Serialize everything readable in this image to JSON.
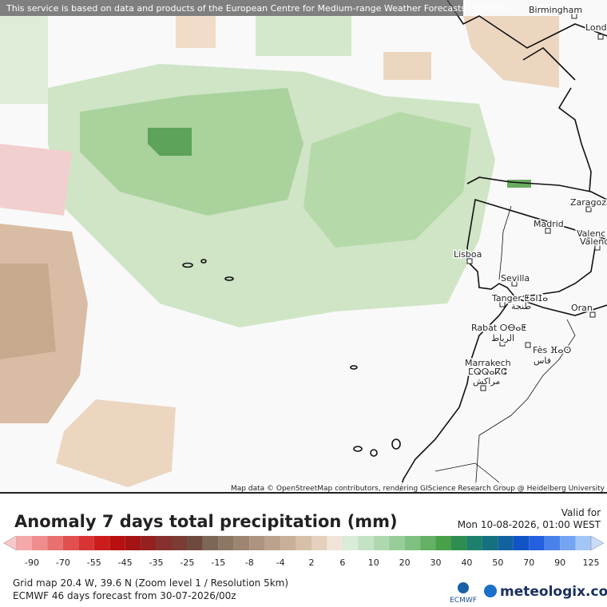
{
  "banner": "This service is based on data and products of the European Centre for Medium-range Weather Forecasts (ECMWF)",
  "cities": [
    {
      "label": "Birmingham"
    },
    {
      "label": "Lond"
    },
    {
      "label": "Zaragoza"
    },
    {
      "label": "Madrid"
    },
    {
      "label": "Valenc"
    },
    {
      "label": "Valenc"
    },
    {
      "label": "Lisboa"
    },
    {
      "label": "Sevilla"
    },
    {
      "label": "Tanger ⵟⴰⵏⵊⴰ"
    },
    {
      "label": "طنجة"
    },
    {
      "label": "Oran"
    },
    {
      "label": "Rabat ⵔⴱⴰⵟ"
    },
    {
      "label": "الرباط"
    },
    {
      "label": "Fès ⴼⴰⵙ"
    },
    {
      "label": "فاس"
    },
    {
      "label": "Marrakech"
    },
    {
      "label": "ⵎⵕⵕⴰⴽⵛ"
    },
    {
      "label": "مراكش"
    }
  ],
  "attribution": "Map data © OpenStreetMap contributors, rendering GIScience Research Group @ Heidelberg University",
  "legend": {
    "title": "Anomaly 7 days total precipitation (mm)",
    "valid_label": "Valid for",
    "valid_time": "Mon 10-08-2026, 01:00 WEST",
    "ticks": [
      -90,
      -70,
      -55,
      -45,
      -35,
      -25,
      -15,
      -8,
      -4,
      2,
      6,
      10,
      20,
      30,
      40,
      50,
      70,
      90,
      125
    ],
    "under_color": "#f8c8c8",
    "colors": [
      "#f5a8a8",
      "#ef8c8c",
      "#e87070",
      "#e05050",
      "#d83434",
      "#cc1c1c",
      "#b81010",
      "#a41414",
      "#942020",
      "#863030",
      "#7a3c34",
      "#6e4a3e",
      "#7c6656",
      "#8c7664",
      "#9c8672",
      "#ac9480",
      "#bca28c",
      "#c8b098",
      "#d6c0a8",
      "#e4d0bc",
      "#f0e4d8",
      "#d8ecd8",
      "#c4e2c4",
      "#b0d8b0",
      "#98cc98",
      "#80c080",
      "#64b064",
      "#48a048",
      "#2e8e52",
      "#1e806c",
      "#167080",
      "#1262a0",
      "#1254c8",
      "#2460e0",
      "#4a82ec",
      "#74a4f2",
      "#a4c6f6"
    ],
    "over_color": "#c8dcf8"
  },
  "footer": {
    "grid_info": "Grid map 20.4 W, 39.6 N (Zoom level 1 / Resolution 5km)",
    "forecast_info": "ECMWF 46 days forecast from  30-07-2026/00z",
    "logo": "ECMWF",
    "brand": "meteologix.com"
  }
}
